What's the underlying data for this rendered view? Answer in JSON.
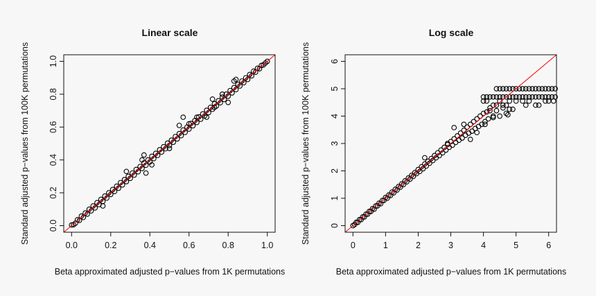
{
  "chart_data": [
    {
      "type": "scatter",
      "title": "Linear scale",
      "xlabel": "Beta approximated adjusted p−values from 1K permutations",
      "ylabel": "Standard adjusted p−values from 100K permutations",
      "xlim": [
        -0.04,
        1.04
      ],
      "ylim": [
        -0.04,
        1.04
      ],
      "xticks": [
        "0.0",
        "0.2",
        "0.4",
        "0.6",
        "0.8",
        "1.0"
      ],
      "yticks": [
        "0.0",
        "0.2",
        "0.4",
        "0.6",
        "0.8",
        "1.0"
      ],
      "xtick_values": [
        0,
        0.2,
        0.4,
        0.6,
        0.8,
        1.0
      ],
      "ytick_values": [
        0,
        0.2,
        0.4,
        0.6,
        0.8,
        1.0
      ],
      "grid": false,
      "reference_line": {
        "type": "y=x",
        "color": "#ff0000"
      },
      "marker": "open-circle",
      "marker_color": "#000000",
      "points": [
        [
          0,
          0.004
        ],
        [
          0.01,
          0.006
        ],
        [
          0.02,
          0.015
        ],
        [
          0.03,
          0.036
        ],
        [
          0.04,
          0.032
        ],
        [
          0.05,
          0.058
        ],
        [
          0.06,
          0.05
        ],
        [
          0.07,
          0.077
        ],
        [
          0.08,
          0.07
        ],
        [
          0.09,
          0.1
        ],
        [
          0.1,
          0.09
        ],
        [
          0.11,
          0.12
        ],
        [
          0.12,
          0.108
        ],
        [
          0.13,
          0.14
        ],
        [
          0.14,
          0.128
        ],
        [
          0.15,
          0.16
        ],
        [
          0.16,
          0.148
        ],
        [
          0.17,
          0.18
        ],
        [
          0.18,
          0.168
        ],
        [
          0.19,
          0.2
        ],
        [
          0.2,
          0.19
        ],
        [
          0.21,
          0.22
        ],
        [
          0.22,
          0.208
        ],
        [
          0.23,
          0.24
        ],
        [
          0.24,
          0.228
        ],
        [
          0.25,
          0.262
        ],
        [
          0.26,
          0.248
        ],
        [
          0.27,
          0.28
        ],
        [
          0.28,
          0.268
        ],
        [
          0.29,
          0.3
        ],
        [
          0.3,
          0.288
        ],
        [
          0.31,
          0.32
        ],
        [
          0.32,
          0.308
        ],
        [
          0.33,
          0.342
        ],
        [
          0.34,
          0.328
        ],
        [
          0.35,
          0.36
        ],
        [
          0.36,
          0.348
        ],
        [
          0.37,
          0.382
        ],
        [
          0.38,
          0.368
        ],
        [
          0.39,
          0.4
        ],
        [
          0.4,
          0.388
        ],
        [
          0.41,
          0.422
        ],
        [
          0.42,
          0.408
        ],
        [
          0.43,
          0.44
        ],
        [
          0.44,
          0.428
        ],
        [
          0.45,
          0.462
        ],
        [
          0.46,
          0.448
        ],
        [
          0.47,
          0.48
        ],
        [
          0.48,
          0.468
        ],
        [
          0.49,
          0.502
        ],
        [
          0.5,
          0.488
        ],
        [
          0.51,
          0.52
        ],
        [
          0.52,
          0.508
        ],
        [
          0.53,
          0.542
        ],
        [
          0.54,
          0.528
        ],
        [
          0.55,
          0.56
        ],
        [
          0.56,
          0.548
        ],
        [
          0.57,
          0.582
        ],
        [
          0.58,
          0.568
        ],
        [
          0.59,
          0.6
        ],
        [
          0.6,
          0.588
        ],
        [
          0.61,
          0.622
        ],
        [
          0.62,
          0.608
        ],
        [
          0.63,
          0.64
        ],
        [
          0.64,
          0.628
        ],
        [
          0.65,
          0.662
        ],
        [
          0.66,
          0.648
        ],
        [
          0.67,
          0.68
        ],
        [
          0.68,
          0.668
        ],
        [
          0.69,
          0.702
        ],
        [
          0.7,
          0.688
        ],
        [
          0.71,
          0.72
        ],
        [
          0.72,
          0.708
        ],
        [
          0.73,
          0.742
        ],
        [
          0.74,
          0.728
        ],
        [
          0.75,
          0.76
        ],
        [
          0.76,
          0.748
        ],
        [
          0.77,
          0.782
        ],
        [
          0.78,
          0.768
        ],
        [
          0.79,
          0.8
        ],
        [
          0.8,
          0.788
        ],
        [
          0.81,
          0.822
        ],
        [
          0.82,
          0.808
        ],
        [
          0.83,
          0.84
        ],
        [
          0.84,
          0.828
        ],
        [
          0.85,
          0.86
        ],
        [
          0.86,
          0.85
        ],
        [
          0.87,
          0.88
        ],
        [
          0.88,
          0.87
        ],
        [
          0.89,
          0.9
        ],
        [
          0.9,
          0.89
        ],
        [
          0.91,
          0.92
        ],
        [
          0.92,
          0.912
        ],
        [
          0.93,
          0.94
        ],
        [
          0.94,
          0.934
        ],
        [
          0.95,
          0.958
        ],
        [
          0.96,
          0.955
        ],
        [
          0.97,
          0.975
        ],
        [
          0.98,
          0.978
        ],
        [
          0.99,
          0.99
        ],
        [
          1.0,
          1.0
        ],
        [
          0.57,
          0.66
        ],
        [
          0.55,
          0.61
        ],
        [
          0.38,
          0.32
        ],
        [
          0.28,
          0.33
        ],
        [
          0.72,
          0.77
        ],
        [
          0.83,
          0.88
        ],
        [
          0.37,
          0.43
        ],
        [
          0.84,
          0.89
        ],
        [
          0.36,
          0.4
        ],
        [
          0.41,
          0.37
        ],
        [
          0.69,
          0.66
        ],
        [
          0.77,
          0.8
        ],
        [
          0.6,
          0.62
        ],
        [
          0.16,
          0.12
        ],
        [
          0.5,
          0.47
        ],
        [
          0.64,
          0.66
        ],
        [
          0.73,
          0.72
        ],
        [
          0.8,
          0.75
        ]
      ]
    },
    {
      "type": "scatter",
      "title": "Log scale",
      "xlabel": "Beta approximated adjusted p−values from 1K permutations",
      "ylabel": "Standard adjusted p−values from 100K permutations",
      "xlim": [
        -0.24,
        6.24
      ],
      "ylim": [
        -0.24,
        6.24
      ],
      "xticks": [
        "0",
        "1",
        "2",
        "3",
        "4",
        "5",
        "6"
      ],
      "yticks": [
        "0",
        "1",
        "2",
        "3",
        "4",
        "5",
        "6"
      ],
      "xtick_values": [
        0,
        1,
        2,
        3,
        4,
        5,
        6
      ],
      "ytick_values": [
        0,
        1,
        2,
        3,
        4,
        5,
        6
      ],
      "grid": false,
      "reference_line": {
        "type": "y=x",
        "color": "#ff0000"
      },
      "marker": "open-circle",
      "marker_color": "#000000",
      "points": [
        [
          0,
          0
        ],
        [
          0.05,
          0.04
        ],
        [
          0.1,
          0.12
        ],
        [
          0.15,
          0.12
        ],
        [
          0.2,
          0.22
        ],
        [
          0.25,
          0.22
        ],
        [
          0.3,
          0.32
        ],
        [
          0.35,
          0.32
        ],
        [
          0.4,
          0.42
        ],
        [
          0.45,
          0.42
        ],
        [
          0.5,
          0.52
        ],
        [
          0.55,
          0.52
        ],
        [
          0.6,
          0.62
        ],
        [
          0.65,
          0.6
        ],
        [
          0.7,
          0.72
        ],
        [
          0.75,
          0.72
        ],
        [
          0.8,
          0.82
        ],
        [
          0.85,
          0.8
        ],
        [
          0.9,
          0.92
        ],
        [
          0.95,
          0.92
        ],
        [
          1.0,
          1.03
        ],
        [
          1.05,
          1.0
        ],
        [
          1.1,
          1.12
        ],
        [
          1.15,
          1.1
        ],
        [
          1.2,
          1.23
        ],
        [
          1.25,
          1.2
        ],
        [
          1.3,
          1.33
        ],
        [
          1.35,
          1.3
        ],
        [
          1.4,
          1.43
        ],
        [
          1.45,
          1.4
        ],
        [
          1.5,
          1.53
        ],
        [
          1.55,
          1.5
        ],
        [
          1.6,
          1.64
        ],
        [
          1.65,
          1.6
        ],
        [
          1.7,
          1.74
        ],
        [
          1.75,
          1.7
        ],
        [
          1.8,
          1.84
        ],
        [
          1.85,
          1.8
        ],
        [
          1.9,
          1.94
        ],
        [
          1.95,
          1.9
        ],
        [
          2.0,
          2.05
        ],
        [
          2.05,
          1.98
        ],
        [
          2.1,
          2.15
        ],
        [
          2.15,
          2.08
        ],
        [
          2.2,
          2.25
        ],
        [
          2.25,
          2.18
        ],
        [
          2.3,
          2.35
        ],
        [
          2.35,
          2.28
        ],
        [
          2.4,
          2.45
        ],
        [
          2.45,
          2.38
        ],
        [
          2.5,
          2.56
        ],
        [
          2.55,
          2.48
        ],
        [
          2.6,
          2.66
        ],
        [
          2.65,
          2.56
        ],
        [
          2.7,
          2.76
        ],
        [
          2.75,
          2.66
        ],
        [
          2.8,
          2.86
        ],
        [
          2.85,
          2.76
        ],
        [
          2.9,
          2.96
        ],
        [
          2.95,
          2.86
        ],
        [
          3.0,
          3.07
        ],
        [
          3.05,
          2.94
        ],
        [
          3.1,
          3.17
        ],
        [
          3.15,
          3.04
        ],
        [
          3.2,
          3.28
        ],
        [
          3.25,
          3.12
        ],
        [
          3.3,
          3.38
        ],
        [
          3.35,
          3.2
        ],
        [
          3.4,
          3.48
        ],
        [
          3.45,
          3.3
        ],
        [
          3.5,
          3.6
        ],
        [
          3.55,
          3.38
        ],
        [
          3.6,
          3.7
        ],
        [
          3.65,
          3.45
        ],
        [
          3.7,
          3.8
        ],
        [
          3.75,
          3.55
        ],
        [
          3.8,
          3.9
        ],
        [
          3.85,
          3.62
        ],
        [
          3.9,
          4.0
        ],
        [
          3.95,
          3.7
        ],
        [
          4.0,
          4.1
        ],
        [
          4.05,
          3.8
        ],
        [
          4.1,
          4.15
        ],
        [
          4.15,
          3.9
        ],
        [
          4.2,
          4.3
        ],
        [
          4.3,
          4.0
        ],
        [
          4.4,
          4.2
        ],
        [
          4.5,
          4.0
        ],
        [
          4.6,
          4.3
        ],
        [
          4.7,
          4.1
        ],
        [
          4.8,
          4.25
        ],
        [
          2.2,
          2.48
        ],
        [
          3.1,
          3.58
        ],
        [
          3.6,
          3.15
        ],
        [
          3.8,
          3.4
        ],
        [
          4.05,
          3.7
        ],
        [
          4.3,
          3.95
        ],
        [
          4.75,
          4.05
        ],
        [
          4.9,
          4.25
        ],
        [
          3.4,
          3.7
        ],
        [
          2.9,
          3.0
        ],
        [
          4.4,
          5.0
        ],
        [
          4.5,
          5.0
        ],
        [
          4.6,
          5.0
        ],
        [
          4.7,
          5.0
        ],
        [
          4.8,
          5.0
        ],
        [
          4.9,
          5.0
        ],
        [
          5.0,
          5.0
        ],
        [
          5.1,
          5.0
        ],
        [
          5.2,
          5.0
        ],
        [
          5.3,
          5.0
        ],
        [
          5.4,
          5.0
        ],
        [
          5.5,
          5.0
        ],
        [
          5.6,
          5.0
        ],
        [
          5.7,
          5.0
        ],
        [
          5.8,
          5.0
        ],
        [
          5.9,
          5.0
        ],
        [
          6.0,
          5.0
        ],
        [
          6.1,
          5.0
        ],
        [
          6.2,
          5.0
        ],
        [
          4.0,
          4.7
        ],
        [
          4.1,
          4.7
        ],
        [
          4.2,
          4.7
        ],
        [
          4.3,
          4.7
        ],
        [
          4.4,
          4.7
        ],
        [
          4.5,
          4.7
        ],
        [
          4.6,
          4.7
        ],
        [
          4.7,
          4.7
        ],
        [
          4.8,
          4.7
        ],
        [
          4.9,
          4.7
        ],
        [
          5.0,
          4.7
        ],
        [
          5.1,
          4.7
        ],
        [
          5.2,
          4.7
        ],
        [
          5.3,
          4.7
        ],
        [
          5.4,
          4.7
        ],
        [
          5.5,
          4.7
        ],
        [
          5.6,
          4.7
        ],
        [
          5.7,
          4.7
        ],
        [
          5.8,
          4.7
        ],
        [
          5.9,
          4.7
        ],
        [
          6.0,
          4.7
        ],
        [
          6.1,
          4.7
        ],
        [
          6.2,
          4.7
        ],
        [
          4.0,
          4.55
        ],
        [
          4.1,
          4.55
        ],
        [
          4.3,
          4.4
        ],
        [
          4.5,
          4.55
        ],
        [
          4.6,
          4.4
        ],
        [
          4.8,
          4.55
        ],
        [
          5.0,
          4.55
        ],
        [
          5.2,
          4.55
        ],
        [
          5.3,
          4.4
        ],
        [
          5.4,
          4.55
        ],
        [
          5.6,
          4.4
        ],
        [
          5.7,
          4.4
        ],
        [
          5.9,
          4.55
        ],
        [
          6.0,
          4.55
        ],
        [
          6.15,
          4.55
        ],
        [
          4.2,
          4.2
        ],
        [
          4.4,
          4.4
        ],
        [
          4.7,
          4.4
        ]
      ]
    }
  ]
}
